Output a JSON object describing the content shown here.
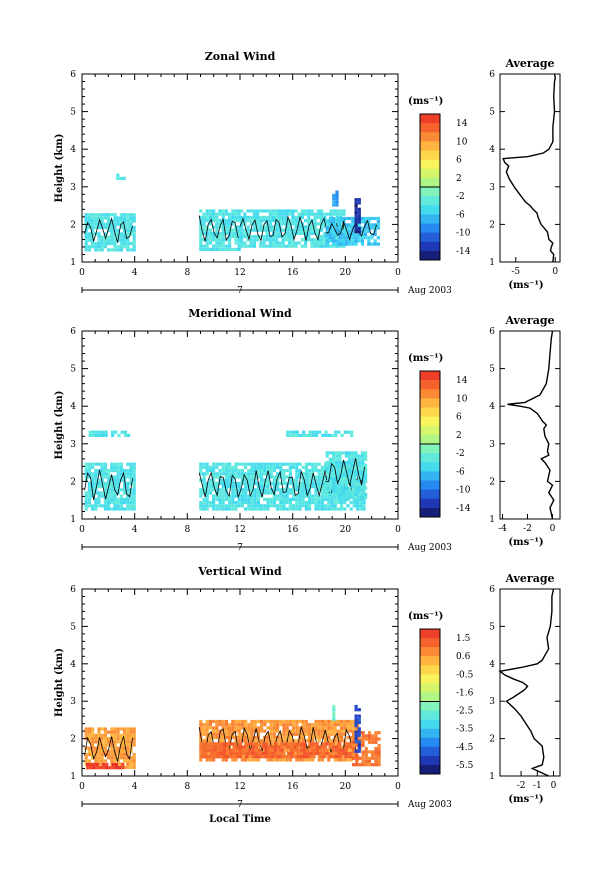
{
  "panels": [
    {
      "title": "Zonal Wind",
      "ylabel": "Height (km)",
      "y_ticks": [
        "1",
        "2",
        "3",
        "4",
        "5",
        "6"
      ],
      "x_ticks": [
        "0",
        "4",
        "8",
        "12",
        "16",
        "20",
        "0"
      ],
      "day_label": "7",
      "date_label": "Aug 2003",
      "colorbar": {
        "unit": "(ms⁻¹)",
        "ticks": [
          "14",
          "10",
          "6",
          "2",
          "-2",
          "-6",
          "-10",
          "-14"
        ]
      },
      "avg": {
        "title": "Average",
        "unit": "(ms⁻¹)",
        "x_ticks": [
          "-5",
          "0"
        ],
        "y_ticks": [
          "1",
          "2",
          "3",
          "4",
          "5",
          "6"
        ]
      }
    },
    {
      "title": "Meridional Wind",
      "ylabel": "Height (km)",
      "y_ticks": [
        "1",
        "2",
        "3",
        "4",
        "5",
        "6"
      ],
      "x_ticks": [
        "0",
        "4",
        "8",
        "12",
        "16",
        "20",
        "0"
      ],
      "day_label": "7",
      "date_label": "Aug 2003",
      "colorbar": {
        "unit": "(ms⁻¹)",
        "ticks": [
          "14",
          "10",
          "6",
          "2",
          "-2",
          "-6",
          "-10",
          "-14"
        ]
      },
      "avg": {
        "title": "Average",
        "unit": "(ms⁻¹)",
        "x_ticks": [
          "-4",
          "-2",
          "0"
        ],
        "y_ticks": [
          "1",
          "2",
          "3",
          "4",
          "5",
          "6"
        ]
      }
    },
    {
      "title": "Vertical Wind",
      "ylabel": "Height (km)",
      "y_ticks": [
        "1",
        "2",
        "3",
        "4",
        "5",
        "6"
      ],
      "x_ticks": [
        "0",
        "4",
        "8",
        "12",
        "16",
        "20",
        "0"
      ],
      "day_label": "7",
      "date_label": "Aug 2003",
      "colorbar": {
        "unit": "(ms⁻¹)",
        "ticks": [
          "1.5",
          "0.6",
          "-0.5",
          "-1.6",
          "-2.5",
          "-3.5",
          "-4.5",
          "-5.5"
        ]
      },
      "avg": {
        "title": "Average",
        "unit": "(ms⁻¹)",
        "x_ticks": [
          "-2",
          "-1",
          "0"
        ],
        "y_ticks": [
          "1",
          "2",
          "3",
          "4",
          "5",
          "6"
        ]
      }
    }
  ],
  "xlabel": "Local Time",
  "chart_data": [
    {
      "type": "heatmap",
      "title": "Zonal Wind",
      "xlabel": "",
      "ylabel": "Height (km)",
      "xlim": [
        0,
        24
      ],
      "ylim": [
        1,
        6
      ],
      "colorbar_range": [
        -16,
        16
      ],
      "data_blocks": [
        {
          "x": [
            0.2,
            3.9
          ],
          "y": [
            1.35,
            2.3
          ],
          "value": -4
        },
        {
          "x": [
            2.6,
            3.2
          ],
          "y": [
            3.2,
            3.35
          ],
          "value": -4
        },
        {
          "x": [
            8.9,
            12.0
          ],
          "y": [
            1.3,
            2.4
          ],
          "value": -4
        },
        {
          "x": [
            12.0,
            20.0
          ],
          "y": [
            1.4,
            2.4
          ],
          "value": -4
        },
        {
          "x": [
            18.5,
            22.4
          ],
          "y": [
            1.5,
            2.2
          ],
          "value": -6
        },
        {
          "x": [
            19.0,
            19.3
          ],
          "y": [
            2.5,
            2.9
          ],
          "value": -8
        },
        {
          "x": [
            20.7,
            21.0
          ],
          "y": [
            1.8,
            2.7
          ],
          "value": -14
        }
      ],
      "avg_profile": {
        "x": [
          -0.3,
          -0.2,
          -0.6,
          -0.5,
          -0.3,
          -0.8,
          -1.0,
          -1.8,
          -2.2,
          -2.3,
          -2.8,
          -3.2,
          -3.8,
          -4.5,
          -5.2,
          -5.8,
          -6.2,
          -5.9,
          -6.4,
          -6.6,
          -3.5,
          -1.5,
          -0.8,
          -0.3,
          -0.3,
          -0.1,
          -0.2,
          -0.1,
          0.0,
          -0.1
        ],
        "y": [
          1.0,
          1.2,
          1.3,
          1.4,
          1.5,
          1.6,
          1.8,
          2.0,
          2.2,
          2.3,
          2.4,
          2.5,
          2.6,
          2.8,
          3.0,
          3.2,
          3.4,
          3.55,
          3.65,
          3.75,
          3.8,
          3.9,
          4.0,
          4.2,
          4.6,
          5.0,
          5.4,
          5.8,
          5.9,
          6.0
        ]
      }
    },
    {
      "type": "heatmap",
      "title": "Meridional Wind",
      "xlabel": "",
      "ylabel": "Height (km)",
      "xlim": [
        0,
        24
      ],
      "ylim": [
        1,
        6
      ],
      "colorbar_range": [
        -16,
        16
      ],
      "data_blocks": [
        {
          "x": [
            0.2,
            3.9
          ],
          "y": [
            1.3,
            2.5
          ],
          "value": -4
        },
        {
          "x": [
            0.5,
            3.5
          ],
          "y": [
            3.25,
            3.35
          ],
          "value": -4
        },
        {
          "x": [
            8.9,
            21.5
          ],
          "y": [
            1.3,
            2.5
          ],
          "value": -4
        },
        {
          "x": [
            15.5,
            20.5
          ],
          "y": [
            3.25,
            3.35
          ],
          "value": -4
        },
        {
          "x": [
            18.5,
            21.5
          ],
          "y": [
            1.6,
            2.8
          ],
          "value": -4
        }
      ],
      "avg_profile": {
        "x": [
          0.0,
          -0.2,
          0.1,
          -0.3,
          0.0,
          -0.4,
          -0.2,
          -0.6,
          -0.9,
          -0.3,
          -0.4,
          -0.3,
          -0.6,
          -0.7,
          -0.5,
          -0.8,
          -1.2,
          -1.8,
          -2.6,
          -3.6,
          -2.2,
          -1.0,
          -0.5,
          -0.3,
          -0.2,
          -0.1,
          0.0
        ],
        "y": [
          1.0,
          1.3,
          1.5,
          1.7,
          1.9,
          2.0,
          2.3,
          2.5,
          2.6,
          2.7,
          2.8,
          3.0,
          3.2,
          3.4,
          3.5,
          3.6,
          3.8,
          3.95,
          4.0,
          4.05,
          4.1,
          4.3,
          4.6,
          5.0,
          5.4,
          5.8,
          6.0
        ]
      }
    },
    {
      "type": "heatmap",
      "title": "Vertical Wind",
      "xlabel": "Local Time",
      "ylabel": "Height (km)",
      "xlim": [
        0,
        24
      ],
      "ylim": [
        1,
        6
      ],
      "colorbar_range": [
        -6,
        2
      ],
      "data_blocks": [
        {
          "x": [
            0.2,
            3.9
          ],
          "y": [
            1.2,
            2.3
          ],
          "value": 0.5
        },
        {
          "x": [
            0.3,
            3.2
          ],
          "y": [
            1.25,
            1.35
          ],
          "value": 1.8
        },
        {
          "x": [
            8.9,
            21.0
          ],
          "y": [
            1.4,
            2.5
          ],
          "value": 0.6
        },
        {
          "x": [
            9.0,
            20.5
          ],
          "y": [
            1.5,
            1.9
          ],
          "value": 1.2
        },
        {
          "x": [
            20.5,
            22.5
          ],
          "y": [
            1.3,
            2.2
          ],
          "value": 1.0
        },
        {
          "x": [
            20.7,
            21.0
          ],
          "y": [
            1.7,
            2.9
          ],
          "value": -5.0
        },
        {
          "x": [
            19.0,
            19.2
          ],
          "y": [
            2.5,
            2.9
          ],
          "value": -2.5
        }
      ],
      "avg_profile": {
        "x": [
          -0.3,
          -1.3,
          -0.7,
          -0.6,
          -0.7,
          -1.2,
          -1.4,
          -1.7,
          -2.0,
          -2.4,
          -2.9,
          -2.5,
          -1.8,
          -1.6,
          -1.9,
          -2.5,
          -3.0,
          -3.3,
          -2.0,
          -1.0,
          -0.7,
          -0.3,
          -0.4,
          -0.2,
          -0.1,
          -0.1,
          0.0
        ],
        "y": [
          1.0,
          1.2,
          1.3,
          1.5,
          1.8,
          2.0,
          2.2,
          2.4,
          2.6,
          2.8,
          3.0,
          3.1,
          3.3,
          3.4,
          3.5,
          3.6,
          3.7,
          3.8,
          3.9,
          4.0,
          4.1,
          4.4,
          4.7,
          5.0,
          5.4,
          5.8,
          6.0
        ]
      }
    }
  ]
}
